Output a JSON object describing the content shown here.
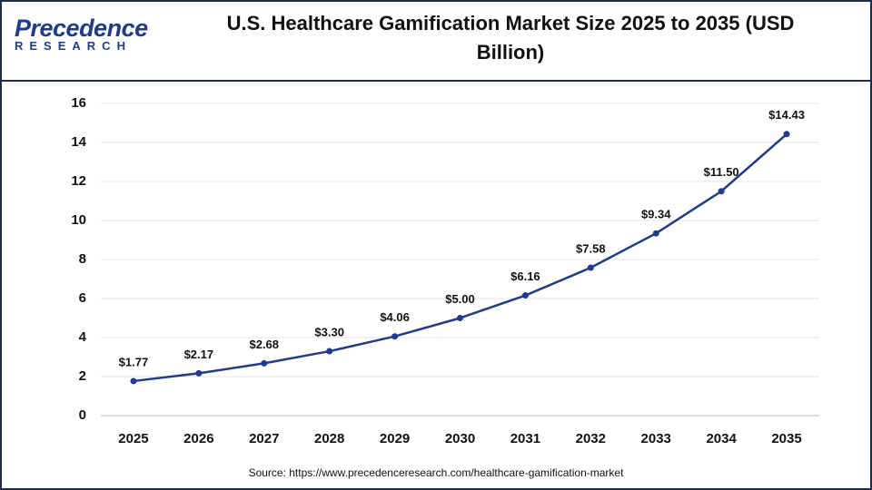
{
  "logo": {
    "name": "Precedence",
    "tagline": "RESEARCH"
  },
  "chart_data": {
    "type": "line",
    "title": "U.S. Healthcare Gamification Market Size 2025 to 2035 (USD Billion)",
    "categories": [
      "2025",
      "2026",
      "2027",
      "2028",
      "2029",
      "2030",
      "2031",
      "2032",
      "2033",
      "2034",
      "2035"
    ],
    "values": [
      1.77,
      2.17,
      2.68,
      3.3,
      4.06,
      5.0,
      6.16,
      7.58,
      9.34,
      11.5,
      14.43
    ],
    "value_labels": [
      "$1.77",
      "$2.17",
      "$2.68",
      "$3.30",
      "$4.06",
      "$5.00",
      "$6.16",
      "$7.58",
      "$9.34",
      "$11.50",
      "$14.43"
    ],
    "color": "#1f3b8f",
    "ylim": [
      0,
      16
    ],
    "yticks": [
      0,
      2,
      4,
      6,
      8,
      10,
      12,
      14,
      16
    ],
    "grid": true,
    "source": "Source: https://www.precedenceresearch.com/healthcare-gamification-market"
  }
}
